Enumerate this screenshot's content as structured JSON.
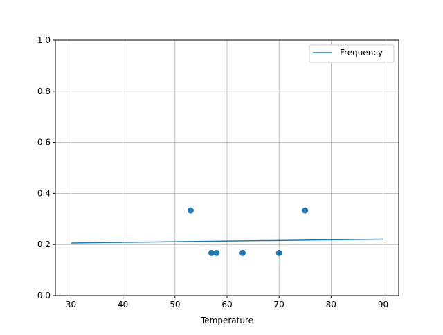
{
  "chart_data": {
    "type": "scatter",
    "title": "",
    "xlabel": "Temperature",
    "ylabel": "",
    "xlim": [
      27,
      93
    ],
    "ylim": [
      0,
      1
    ],
    "xticks": [
      30,
      40,
      50,
      60,
      70,
      80,
      90
    ],
    "yticks": [
      0.0,
      0.2,
      0.4,
      0.6,
      0.8,
      1.0
    ],
    "xtick_labels": [
      "30",
      "40",
      "50",
      "60",
      "70",
      "80",
      "90"
    ],
    "ytick_labels": [
      "0.0",
      "0.2",
      "0.4",
      "0.6",
      "0.8",
      "1.0"
    ],
    "grid": true,
    "legend_position": "upper-right",
    "color": "#1f77b4",
    "scatter": {
      "x": [
        53,
        57,
        58,
        63,
        70,
        75
      ],
      "y": [
        0.333,
        0.167,
        0.167,
        0.167,
        0.167,
        0.333
      ]
    },
    "line": {
      "name": "Frequency",
      "x": [
        30,
        90
      ],
      "y": [
        0.206,
        0.221
      ]
    }
  }
}
